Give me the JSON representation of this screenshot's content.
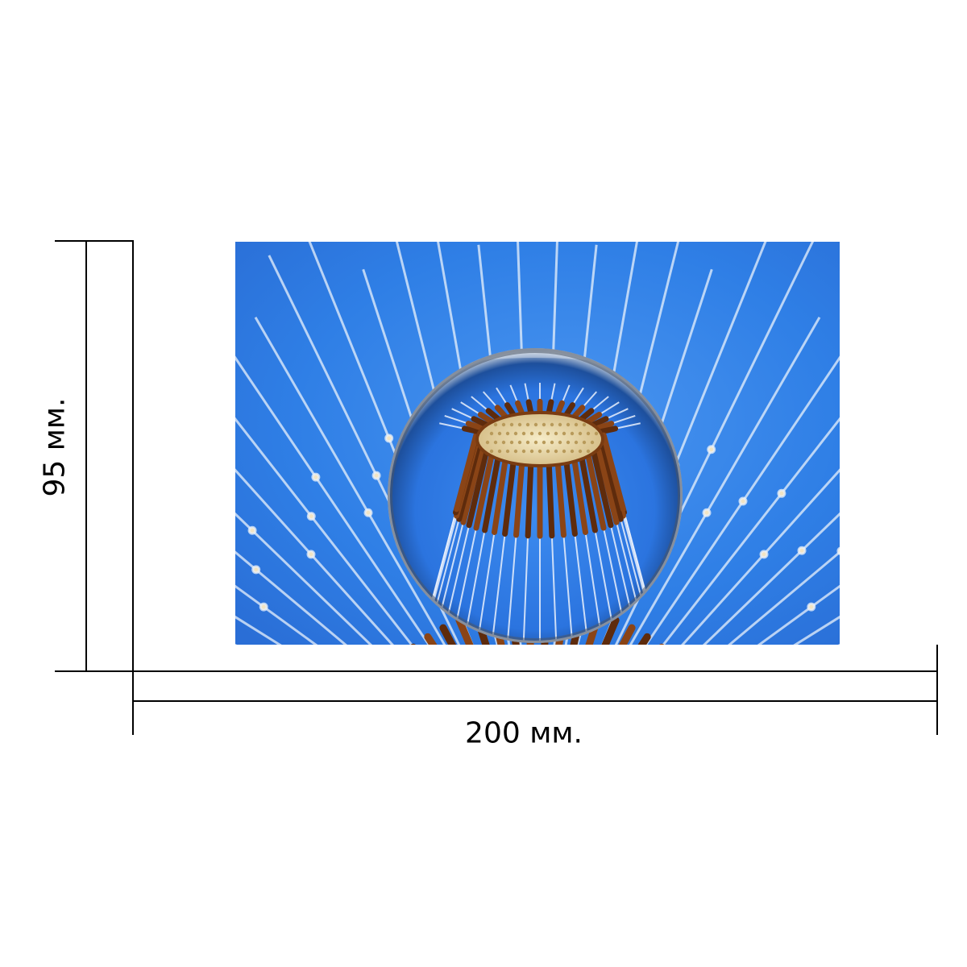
{
  "photo": {
    "subject": "dandelion-crystal-ball",
    "colors": {
      "sky": "#2f7fe6",
      "sky_light": "#7fb6f5",
      "filament": "#e8eef8",
      "seed_brown": "#7a3c12",
      "seed_head": "#efe2b8"
    }
  },
  "dimensions": {
    "height_label": "95 мм.",
    "width_label": "200 мм."
  }
}
